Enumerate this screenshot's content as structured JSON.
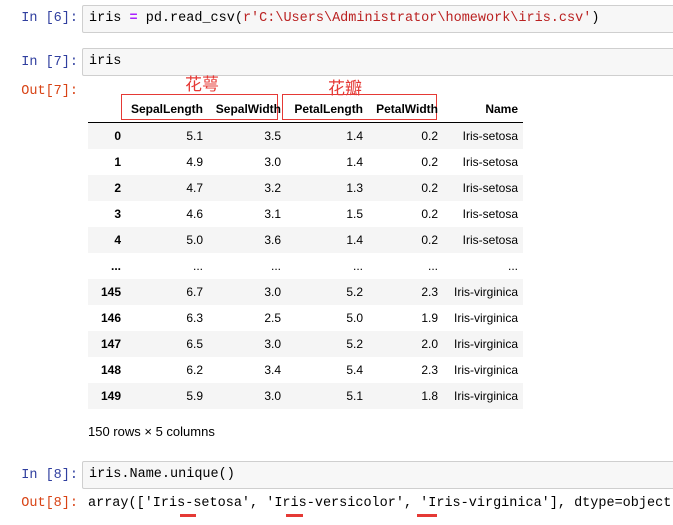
{
  "cells": {
    "in6": {
      "prompt": "In  [6]:",
      "code_var": "iris",
      "code_op": "=",
      "code_call": "pd.read_csv(",
      "code_str": "r'C:\\Users\\Administrator\\homework\\iris.csv'",
      "code_close": ")"
    },
    "in7": {
      "prompt": "In  [7]:",
      "code": "iris"
    },
    "out7": {
      "prompt": "Out[7]:"
    },
    "in8": {
      "prompt": "In  [8]:",
      "code": "iris.Name.unique()"
    },
    "out8": {
      "prompt": "Out[8]:",
      "text": "array(['Iris-setosa', 'Iris-versicolor', 'Iris-virginica'], dtype=object)"
    }
  },
  "annotations": {
    "sepal": "花萼",
    "petal": "花瓣"
  },
  "table": {
    "columns": [
      "SepalLength",
      "SepalWidth",
      "PetalLength",
      "PetalWidth",
      "Name"
    ],
    "rows": [
      {
        "index": "0",
        "cells": [
          "5.1",
          "3.5",
          "1.4",
          "0.2",
          "Iris-setosa"
        ]
      },
      {
        "index": "1",
        "cells": [
          "4.9",
          "3.0",
          "1.4",
          "0.2",
          "Iris-setosa"
        ]
      },
      {
        "index": "2",
        "cells": [
          "4.7",
          "3.2",
          "1.3",
          "0.2",
          "Iris-setosa"
        ]
      },
      {
        "index": "3",
        "cells": [
          "4.6",
          "3.1",
          "1.5",
          "0.2",
          "Iris-setosa"
        ]
      },
      {
        "index": "4",
        "cells": [
          "5.0",
          "3.6",
          "1.4",
          "0.2",
          "Iris-setosa"
        ]
      },
      {
        "index": "...",
        "cells": [
          "...",
          "...",
          "...",
          "...",
          "..."
        ]
      },
      {
        "index": "145",
        "cells": [
          "6.7",
          "3.0",
          "5.2",
          "2.3",
          "Iris-virginica"
        ]
      },
      {
        "index": "146",
        "cells": [
          "6.3",
          "2.5",
          "5.0",
          "1.9",
          "Iris-virginica"
        ]
      },
      {
        "index": "147",
        "cells": [
          "6.5",
          "3.0",
          "5.2",
          "2.0",
          "Iris-virginica"
        ]
      },
      {
        "index": "148",
        "cells": [
          "6.2",
          "3.4",
          "5.4",
          "2.3",
          "Iris-virginica"
        ]
      },
      {
        "index": "149",
        "cells": [
          "5.9",
          "3.0",
          "5.1",
          "1.8",
          "Iris-virginica"
        ]
      }
    ],
    "shape_text": "150 rows × 5 columns"
  },
  "colors": {
    "annotation": "#e53935",
    "in_prompt": "#303f9f",
    "out_prompt": "#d84315"
  }
}
